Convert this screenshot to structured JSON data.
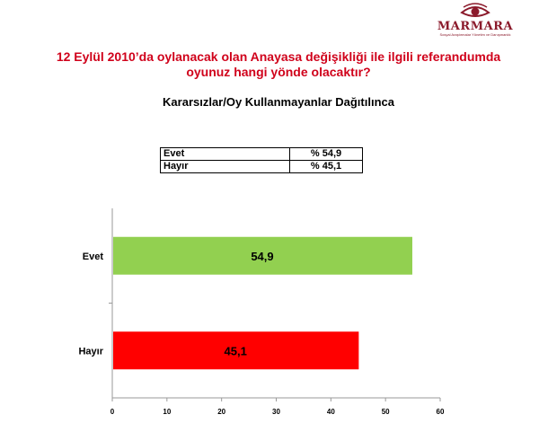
{
  "logo": {
    "name": "MARMARA",
    "tagline": "Sosyal Araştırmalar Yönetim ve Danışmanlık"
  },
  "question": "12 Eylül 2010’da oylanacak olan Anayasa değişikliği ile ilgili referandumda oyunuz hangi yönde olacaktır?",
  "subtitle": "Kararsızlar/Oy Kullanmayanlar Dağıtılınca",
  "summary_table": [
    {
      "label": "Evet",
      "value": "% 54,9"
    },
    {
      "label": "Hayır",
      "value": "% 45,1"
    }
  ],
  "chart_data": {
    "type": "bar",
    "orientation": "horizontal",
    "categories": [
      "Evet",
      "Hayır"
    ],
    "values": [
      54.9,
      45.1
    ],
    "value_labels": [
      "54,9",
      "45,1"
    ],
    "colors": [
      "#92d050",
      "#ff0000"
    ],
    "xlim": [
      0,
      60
    ],
    "xticks": [
      0,
      10,
      20,
      30,
      40,
      50,
      60
    ],
    "grid": false,
    "legend": "none"
  }
}
